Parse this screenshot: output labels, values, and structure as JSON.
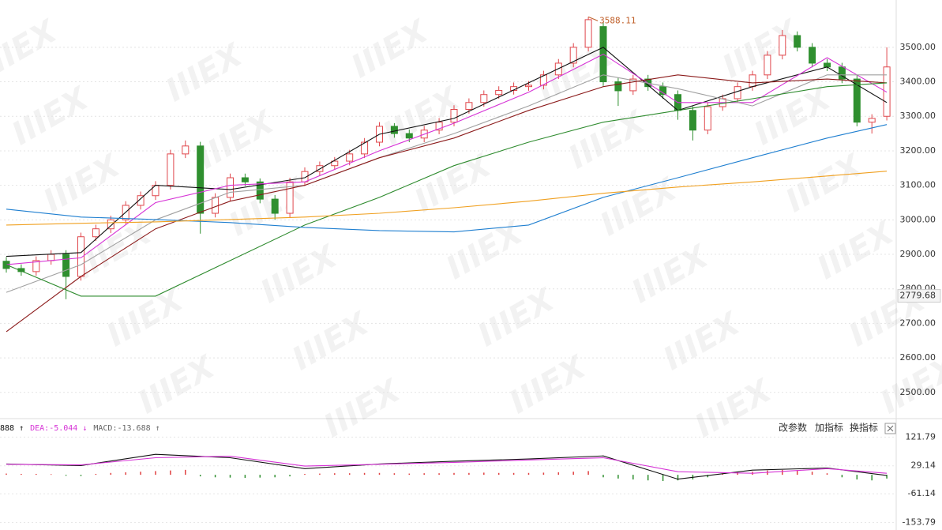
{
  "watermark": "IIIEX",
  "toolbar": [
    "改参数",
    "加指标",
    "换指标"
  ],
  "chart_data": [
    {
      "type": "candlestick",
      "ylim": [
        2424,
        3637
      ],
      "yticks": [
        {
          "value": 2500,
          "label": "2500.00"
        },
        {
          "value": 2600,
          "label": "2600.00"
        },
        {
          "value": 2700,
          "label": "2700.00"
        },
        {
          "value": 2800,
          "label": "2800.00"
        },
        {
          "value": 2900,
          "label": "2900.00"
        },
        {
          "value": 3000,
          "label": "3000.00"
        },
        {
          "value": 3100,
          "label": "3100.00"
        },
        {
          "value": 3200,
          "label": "3200.00"
        },
        {
          "value": 3300,
          "label": "3300.00"
        },
        {
          "value": 3400,
          "label": "3400.00"
        },
        {
          "value": 3500,
          "label": "3500.00"
        }
      ],
      "grid": true,
      "up_color": "#e0474c",
      "down_color": "#2f8f2f",
      "open": [
        2880,
        2859,
        2850,
        2882,
        2900,
        2836,
        2951,
        2974,
        3000,
        3042,
        3070,
        3100,
        3191,
        3214,
        3019,
        3065,
        3122,
        3110,
        3060,
        3019,
        3110,
        3140,
        3157,
        3170,
        3191,
        3225,
        3271,
        3250,
        3237,
        3260,
        3283,
        3320,
        3340,
        3363,
        3375,
        3386,
        3390,
        3420,
        3454,
        3500,
        3560,
        3400,
        3374,
        3408,
        3386,
        3363,
        3317,
        3260,
        3328,
        3351,
        3386,
        3420,
        3477,
        3534,
        3500,
        3454,
        3443,
        3408,
        3283,
        3300
      ],
      "high": [
        2892,
        2871,
        2894,
        2912,
        2912,
        2963,
        2986,
        3012,
        3054,
        3082,
        3112,
        3203,
        3230,
        3226,
        3077,
        3134,
        3134,
        3120,
        3072,
        3122,
        3152,
        3169,
        3182,
        3203,
        3237,
        3283,
        3280,
        3262,
        3272,
        3295,
        3332,
        3352,
        3375,
        3387,
        3398,
        3402,
        3432,
        3466,
        3512,
        3588.11,
        3572,
        3412,
        3420,
        3420,
        3398,
        3375,
        3329,
        3340,
        3363,
        3398,
        3432,
        3489,
        3550,
        3546,
        3512,
        3466,
        3455,
        3420,
        3306,
        3500
      ],
      "low": [
        2847,
        2838,
        2838,
        2870,
        2770,
        2824,
        2939,
        2962,
        2988,
        3030,
        3058,
        3088,
        3179,
        2960,
        3007,
        3053,
        3098,
        3048,
        3000,
        3007,
        3098,
        3128,
        3145,
        3158,
        3179,
        3213,
        3238,
        3225,
        3225,
        3248,
        3271,
        3308,
        3328,
        3351,
        3363,
        3374,
        3378,
        3408,
        3442,
        3488,
        3388,
        3330,
        3362,
        3374,
        3351,
        3290,
        3230,
        3248,
        3316,
        3339,
        3374,
        3408,
        3465,
        3488,
        3442,
        3431,
        3396,
        3271,
        3250,
        3288
      ],
      "close": [
        2859,
        2850,
        2882,
        2900,
        2836,
        2951,
        2974,
        3000,
        3042,
        3070,
        3100,
        3191,
        3214,
        3019,
        3065,
        3122,
        3110,
        3060,
        3019,
        3110,
        3140,
        3157,
        3170,
        3191,
        3225,
        3271,
        3250,
        3237,
        3260,
        3283,
        3320,
        3340,
        3363,
        3375,
        3386,
        3390,
        3420,
        3454,
        3500,
        3580,
        3400,
        3374,
        3408,
        3386,
        3363,
        3317,
        3260,
        3328,
        3351,
        3386,
        3420,
        3477,
        3534,
        3500,
        3454,
        3443,
        3408,
        3283,
        3294,
        3443
      ],
      "high_label": "3588.11",
      "high_index": 39,
      "last_label": {
        "value": 2779.68,
        "label": "2779.68"
      },
      "ma_x": [
        0,
        5,
        10,
        15,
        20,
        25,
        30,
        35,
        40,
        45,
        50,
        55,
        59
      ],
      "series": [
        {
          "color": "#111111",
          "values": [
            2894,
            2905,
            3100,
            3088,
            3122,
            3248,
            3294,
            3397,
            3500,
            3317,
            3386,
            3443,
            3340
          ]
        },
        {
          "color": "#d633d6",
          "values": [
            2870,
            2890,
            3050,
            3100,
            3110,
            3200,
            3280,
            3370,
            3480,
            3340,
            3340,
            3470,
            3370
          ]
        },
        {
          "color": "#a0a0a0",
          "values": [
            2790,
            2870,
            3000,
            3080,
            3100,
            3180,
            3250,
            3330,
            3420,
            3380,
            3330,
            3420,
            3420
          ]
        },
        {
          "color": "#8b1a1a",
          "values": [
            2676,
            2836,
            2974,
            3054,
            3100,
            3180,
            3237,
            3317,
            3386,
            3420,
            3397,
            3408,
            3397
          ]
        },
        {
          "color": "#2e8b2e",
          "values": [
            2870,
            2779,
            2779,
            2882,
            2985,
            3065,
            3157,
            3225,
            3283,
            3317,
            3351,
            3386,
            3397
          ]
        },
        {
          "color": "#1f7fd0",
          "values": [
            3031,
            3008,
            3001,
            2992,
            2978,
            2969,
            2965,
            2985,
            3065,
            3122,
            3180,
            3237,
            3276
          ]
        },
        {
          "color": "#f0a020",
          "values": [
            2985,
            2990,
            2994,
            3001,
            3008,
            3019,
            3035,
            3054,
            3077,
            3095,
            3110,
            3127,
            3141
          ]
        }
      ]
    },
    {
      "type": "macd",
      "ylim": [
        -178,
        143
      ],
      "yticks": [
        121.79,
        29.14,
        -61.14,
        -153.79
      ],
      "header": [
        {
          "text": "888 ↑",
          "color": "#111111"
        },
        {
          "text": "DEA:-5.044 ↓",
          "color": "#d633d6"
        },
        {
          "text": "MACD:-13.688 ↑",
          "color": "#666666"
        }
      ],
      "histogram": [
        4,
        3,
        3,
        2,
        -3,
        -4,
        3,
        6,
        8,
        10,
        12,
        14,
        16,
        -5,
        -8,
        -9,
        -10,
        -9,
        -8,
        -5,
        3,
        4,
        5,
        5,
        6,
        6,
        5,
        4,
        5,
        5,
        6,
        6,
        7,
        6,
        6,
        6,
        7,
        8,
        10,
        12,
        -8,
        -12,
        -15,
        -18,
        -20,
        -18,
        -15,
        -8,
        5,
        8,
        10,
        14,
        16,
        14,
        10,
        5,
        -8,
        -15,
        -18,
        -12
      ],
      "x": [
        0,
        5,
        10,
        15,
        20,
        25,
        30,
        35,
        40,
        45,
        50,
        55,
        59
      ],
      "series": [
        {
          "color": "#111111",
          "values": [
            35,
            30,
            66,
            55,
            20,
            35,
            44,
            51,
            61,
            -14,
            15,
            22,
            -2
          ]
        },
        {
          "color": "#d633d6",
          "values": [
            34,
            32,
            55,
            60,
            28,
            34,
            40,
            48,
            55,
            10,
            5,
            20,
            5
          ]
        }
      ]
    }
  ]
}
